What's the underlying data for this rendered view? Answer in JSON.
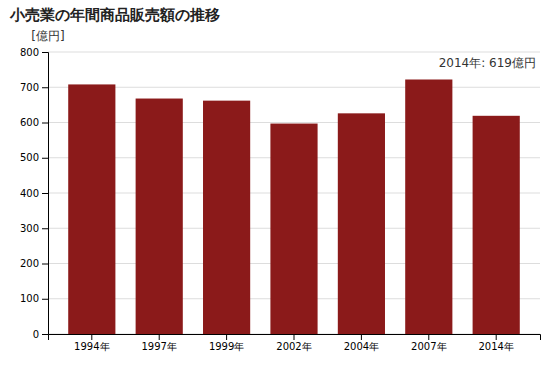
{
  "chart_data": {
    "type": "bar",
    "title": "小売業の年間商品販売額の推移",
    "ylabel": "[億円]",
    "annotation": "2014年: 619億円",
    "categories": [
      "1994年",
      "1997年",
      "1999年",
      "2002年",
      "2004年",
      "2007年",
      "2014年"
    ],
    "values": [
      708,
      668,
      662,
      597,
      626,
      722,
      619
    ],
    "color": "#8B1A1A",
    "ylim": [
      0,
      800
    ],
    "yticks": [
      0,
      100,
      200,
      300,
      400,
      500,
      600,
      700,
      800
    ],
    "grid": true
  }
}
